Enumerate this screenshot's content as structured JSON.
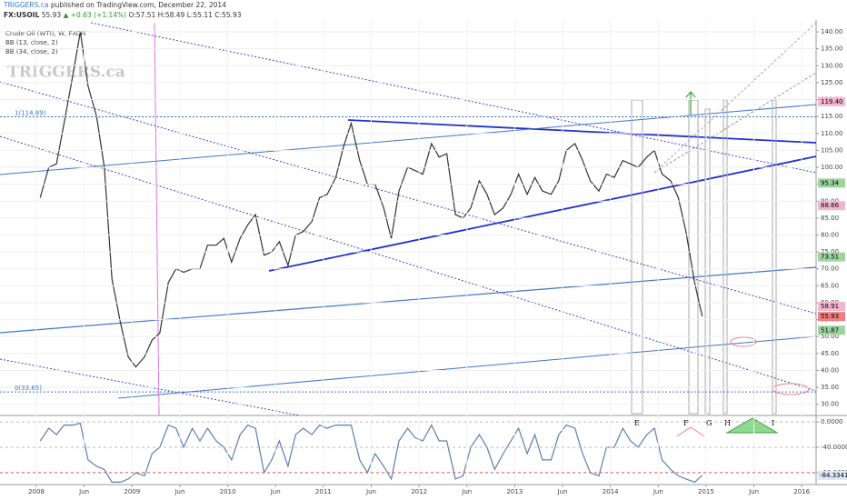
{
  "header": {
    "publisher": "TRIGGERS.ca",
    "published": "published on TradingView.com, December 22, 2014",
    "symbol": "FX:USOIL",
    "last": "55.93",
    "change": "▲ +0.63 (+1.14%)",
    "open": "O:57.51",
    "high": "H:58.49",
    "low": "L:55.11",
    "close": "C:55.93"
  },
  "legend": [
    "Crude Oil (WTI), W, FXCM",
    "BB (13, close, 2)",
    "BB (34, close, 2)"
  ],
  "watermark": "TRIGGERS.ca",
  "markers": [
    "E",
    "F",
    "G",
    "H",
    "I"
  ],
  "chart_data": [
    {
      "type": "line",
      "color": "#333333",
      "grid": true,
      "x": [
        2008.04,
        2008.13,
        2008.21,
        2008.29,
        2008.38,
        2008.46,
        2008.54,
        2008.63,
        2008.71,
        2008.79,
        2008.88,
        2008.96,
        2009.04,
        2009.13,
        2009.21,
        2009.29,
        2009.38,
        2009.46,
        2009.54,
        2009.63,
        2009.71,
        2009.79,
        2009.88,
        2009.96,
        2010.04,
        2010.13,
        2010.21,
        2010.29,
        2010.38,
        2010.46,
        2010.54,
        2010.63,
        2010.71,
        2010.79,
        2010.88,
        2010.96,
        2011.04,
        2011.13,
        2011.21,
        2011.29,
        2011.38,
        2011.46,
        2011.54,
        2011.63,
        2011.71,
        2011.79,
        2011.88,
        2011.96,
        2012.04,
        2012.13,
        2012.21,
        2012.29,
        2012.38,
        2012.46,
        2012.54,
        2012.63,
        2012.71,
        2012.79,
        2012.88,
        2012.96,
        2013.04,
        2013.13,
        2013.21,
        2013.29,
        2013.38,
        2013.46,
        2013.54,
        2013.63,
        2013.71,
        2013.79,
        2013.88,
        2013.96,
        2014.04,
        2014.13,
        2014.21,
        2014.29,
        2014.38,
        2014.46,
        2014.54,
        2014.63,
        2014.71,
        2014.79,
        2014.88,
        2014.96
      ],
      "values": [
        91,
        100,
        101,
        113,
        127,
        140,
        124,
        115,
        100,
        67,
        54,
        44,
        41,
        44,
        49,
        51,
        66,
        70,
        69,
        70,
        70,
        77,
        77,
        79,
        72,
        79,
        83,
        86,
        74,
        75,
        78,
        71,
        80,
        81,
        84,
        91,
        92,
        97,
        106,
        113,
        102,
        95,
        95,
        88,
        79,
        93,
        100,
        99,
        98,
        107,
        103,
        104,
        86,
        85,
        88,
        96,
        92,
        86,
        88,
        92,
        98,
        92,
        97,
        93,
        92,
        96,
        105,
        107,
        102,
        96,
        93,
        98,
        97,
        102,
        101,
        100,
        103,
        105,
        98,
        96,
        91,
        81,
        66,
        55.93
      ],
      "xlim": [
        2007.62,
        2016.15
      ],
      "ylim": [
        26.7,
        143.5
      ],
      "xticks": [
        2008,
        {
          "value": 2008.5,
          "label": "Jun"
        },
        2009,
        {
          "value": 2009.5,
          "label": "Jun"
        },
        2010,
        {
          "value": 2010.5,
          "label": "Jun"
        },
        2011,
        {
          "value": 2011.5,
          "label": "Jun"
        },
        2012,
        {
          "value": 2012.5,
          "label": "Jun"
        },
        2013,
        {
          "value": 2013.5,
          "label": "Jun"
        },
        2014,
        {
          "value": 2014.5,
          "label": "Jun"
        },
        2015,
        {
          "value": 2015.5,
          "label": "Jun"
        },
        2016
      ],
      "yticks": [
        {
          "value": 30,
          "label": "30.00"
        },
        {
          "value": 35,
          "label": "35.00"
        },
        {
          "value": 40,
          "label": "40.00"
        },
        {
          "value": 45,
          "label": "45.00"
        },
        {
          "value": 50,
          "label": "50.00"
        },
        {
          "value": 55,
          "label": "55.00"
        },
        {
          "value": 60,
          "label": "60.00"
        },
        {
          "value": 65,
          "label": "65.00"
        },
        {
          "value": 70,
          "label": "70.00"
        },
        {
          "value": 75,
          "label": "75.00"
        },
        {
          "value": 80,
          "label": "80.00"
        },
        {
          "value": 85,
          "label": "85.00"
        },
        {
          "value": 90,
          "label": "90.00"
        },
        {
          "value": 95,
          "label": "95.00"
        },
        {
          "value": 100,
          "label": "100.00"
        },
        {
          "value": 105,
          "label": "105.00"
        },
        {
          "value": 110,
          "label": "110.00"
        },
        {
          "value": 115,
          "label": "115.00"
        },
        {
          "value": 120,
          "label": "120.00"
        },
        {
          "value": 125,
          "label": "125.00"
        },
        {
          "value": 130,
          "label": "130.00"
        },
        {
          "value": 135,
          "label": "135.00"
        },
        {
          "value": 140,
          "label": "140.00"
        }
      ],
      "fib_levels": [
        {
          "value": 114.89,
          "label": "1(114.89)"
        },
        {
          "value": 33.65,
          "label": "0(33.65)"
        }
      ],
      "price_labels": [
        {
          "value": 119.4,
          "label": "119.40",
          "color": "#f4b6cf"
        },
        {
          "value": 95.34,
          "label": "95.34",
          "color": "#9ed39e"
        },
        {
          "value": 88.66,
          "label": "88.66",
          "color": "#f4b6cf"
        },
        {
          "value": 73.51,
          "label": "73.51",
          "color": "#9ed39e"
        },
        {
          "value": 58.91,
          "label": "58.91",
          "color": "#f4b6cf"
        },
        {
          "value": 55.93,
          "label": "55.93",
          "color": "#f08080"
        },
        {
          "value": 51.87,
          "label": "51.87",
          "color": "#9ed39e"
        }
      ]
    },
    {
      "type": "line",
      "color": "#5b7fb0",
      "x": [
        2008.04,
        2008.13,
        2008.21,
        2008.29,
        2008.38,
        2008.46,
        2008.54,
        2008.63,
        2008.71,
        2008.79,
        2008.88,
        2008.96,
        2009.04,
        2009.13,
        2009.21,
        2009.29,
        2009.38,
        2009.46,
        2009.54,
        2009.63,
        2009.71,
        2009.79,
        2009.88,
        2009.96,
        2010.04,
        2010.13,
        2010.21,
        2010.29,
        2010.38,
        2010.46,
        2010.54,
        2010.63,
        2010.71,
        2010.79,
        2010.88,
        2010.96,
        2011.04,
        2011.13,
        2011.21,
        2011.29,
        2011.38,
        2011.46,
        2011.54,
        2011.63,
        2011.71,
        2011.79,
        2011.88,
        2011.96,
        2012.04,
        2012.13,
        2012.21,
        2012.29,
        2012.38,
        2012.46,
        2012.54,
        2012.63,
        2012.71,
        2012.79,
        2012.88,
        2012.96,
        2013.04,
        2013.13,
        2013.21,
        2013.29,
        2013.38,
        2013.46,
        2013.54,
        2013.63,
        2013.71,
        2013.79,
        2013.88,
        2013.96,
        2014.04,
        2014.13,
        2014.21,
        2014.29,
        2014.38,
        2014.46,
        2014.54,
        2014.63,
        2014.71,
        2014.79,
        2014.88,
        2014.96
      ],
      "values": [
        -30,
        -10,
        -20,
        -5,
        -5,
        -2,
        -60,
        -70,
        -75,
        -95,
        -95,
        -90,
        -80,
        -85,
        -50,
        -40,
        -5,
        -10,
        -40,
        -10,
        -30,
        -10,
        -30,
        -40,
        -60,
        -20,
        -5,
        -10,
        -80,
        -60,
        -30,
        -70,
        -20,
        -10,
        -20,
        -5,
        -10,
        -5,
        -5,
        -5,
        -60,
        -80,
        -50,
        -70,
        -90,
        -30,
        -10,
        -25,
        -30,
        -5,
        -30,
        -30,
        -90,
        -85,
        -40,
        -20,
        -40,
        -75,
        -50,
        -30,
        -10,
        -50,
        -20,
        -60,
        -60,
        -20,
        -5,
        -10,
        -50,
        -80,
        -85,
        -40,
        -40,
        -10,
        -30,
        -40,
        -20,
        -10,
        -60,
        -75,
        -85,
        -90,
        -95,
        -84.3341
      ],
      "xlim": [
        2007.62,
        2016.15
      ],
      "ylim": [
        -98.8,
        10.2
      ],
      "yticks": [
        {
          "value": 0,
          "label": "0.0000"
        },
        {
          "value": -40,
          "label": "-40.0000"
        },
        {
          "value": -80,
          "label": "-80.0000"
        }
      ],
      "last_label": {
        "value": -84.3341,
        "label": "-84.3341"
      }
    }
  ]
}
